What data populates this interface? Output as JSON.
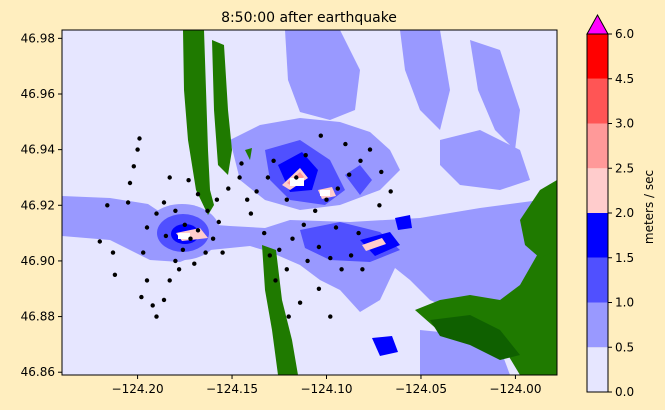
{
  "chart_data": {
    "type": "heatmap",
    "title": "8:50:00 after earthquake",
    "xlabel": "",
    "ylabel": "",
    "xlim": [
      -124.24,
      -123.978
    ],
    "ylim": [
      46.859,
      46.983
    ],
    "x_ticks": [
      -124.2,
      -124.15,
      -124.1,
      -124.05,
      -124.0
    ],
    "x_tick_labels": [
      "−124.20",
      "−124.15",
      "−124.10",
      "−124.05",
      "−124.00"
    ],
    "y_ticks": [
      46.86,
      46.88,
      46.9,
      46.92,
      46.94,
      46.96,
      46.98
    ],
    "y_tick_labels": [
      "46.86",
      "46.88",
      "46.90",
      "46.92",
      "46.94",
      "46.96",
      "46.98"
    ],
    "colorbar": {
      "label": "meters / sec",
      "levels": [
        0.0,
        0.5,
        1.0,
        1.5,
        2.0,
        2.5,
        3.0,
        4.5,
        6.0
      ],
      "level_labels": [
        "0.0",
        "0.5",
        "1.0",
        "1.5",
        "2.0",
        "2.5",
        "3.0",
        "4.5",
        "6.0"
      ],
      "colors": [
        "#e6e6ff",
        "#9999ff",
        "#5050ff",
        "#0000ff",
        "#ffcccc",
        "#ff9999",
        "#ff5555",
        "#ff0000"
      ],
      "extend_color": "#ff00ff"
    },
    "land_color": "#1f7a00",
    "dark_land_color": "#0f6000",
    "particle_color": "#000000",
    "particles": [
      [
        -124.22,
        46.907
      ],
      [
        -124.213,
        46.903
      ],
      [
        -124.212,
        46.895
      ],
      [
        -124.216,
        46.92
      ],
      [
        -124.205,
        46.921
      ],
      [
        -124.204,
        46.928
      ],
      [
        -124.202,
        46.934
      ],
      [
        -124.2,
        46.94
      ],
      [
        -124.199,
        46.944
      ],
      [
        -124.195,
        46.912
      ],
      [
        -124.197,
        46.903
      ],
      [
        -124.195,
        46.893
      ],
      [
        -124.198,
        46.887
      ],
      [
        -124.192,
        46.884
      ],
      [
        -124.19,
        46.88
      ],
      [
        -124.186,
        46.886
      ],
      [
        -124.183,
        46.893
      ],
      [
        -124.18,
        46.9
      ],
      [
        -124.176,
        46.904
      ],
      [
        -124.172,
        46.908
      ],
      [
        -124.168,
        46.911
      ],
      [
        -124.175,
        46.913
      ],
      [
        -124.18,
        46.918
      ],
      [
        -124.186,
        46.921
      ],
      [
        -124.19,
        46.917
      ],
      [
        -124.185,
        46.909
      ],
      [
        -124.178,
        46.897
      ],
      [
        -124.17,
        46.899
      ],
      [
        -124.164,
        46.903
      ],
      [
        -124.16,
        46.908
      ],
      [
        -124.157,
        46.914
      ],
      [
        -124.163,
        46.918
      ],
      [
        -124.168,
        46.924
      ],
      [
        -124.173,
        46.929
      ],
      [
        -124.183,
        46.93
      ],
      [
        -124.158,
        46.922
      ],
      [
        -124.152,
        46.926
      ],
      [
        -124.146,
        46.93
      ],
      [
        -124.142,
        46.922
      ],
      [
        -124.137,
        46.925
      ],
      [
        -124.131,
        46.93
      ],
      [
        -124.128,
        46.936
      ],
      [
        -124.14,
        46.917
      ],
      [
        -124.133,
        46.91
      ],
      [
        -124.125,
        46.904
      ],
      [
        -124.118,
        46.908
      ],
      [
        -124.112,
        46.913
      ],
      [
        -124.106,
        46.918
      ],
      [
        -124.1,
        46.922
      ],
      [
        -124.094,
        46.926
      ],
      [
        -124.088,
        46.931
      ],
      [
        -124.082,
        46.936
      ],
      [
        -124.077,
        46.94
      ],
      [
        -124.071,
        46.932
      ],
      [
        -124.09,
        46.942
      ],
      [
        -124.103,
        46.945
      ],
      [
        -124.111,
        46.938
      ],
      [
        -124.116,
        46.93
      ],
      [
        -124.121,
        46.922
      ],
      [
        -124.11,
        46.9
      ],
      [
        -124.104,
        46.905
      ],
      [
        -124.098,
        46.901
      ],
      [
        -124.092,
        46.897
      ],
      [
        -124.087,
        46.902
      ],
      [
        -124.081,
        46.897
      ],
      [
        -124.121,
        46.897
      ],
      [
        -124.127,
        46.893
      ],
      [
        -124.114,
        46.885
      ],
      [
        -124.104,
        46.89
      ],
      [
        -124.13,
        46.902
      ],
      [
        -124.145,
        46.935
      ],
      [
        -124.095,
        46.912
      ],
      [
        -124.083,
        46.91
      ],
      [
        -124.072,
        46.92
      ],
      [
        -124.066,
        46.925
      ],
      [
        -124.155,
        46.903
      ],
      [
        -124.12,
        46.88
      ],
      [
        -124.098,
        46.88
      ]
    ]
  }
}
